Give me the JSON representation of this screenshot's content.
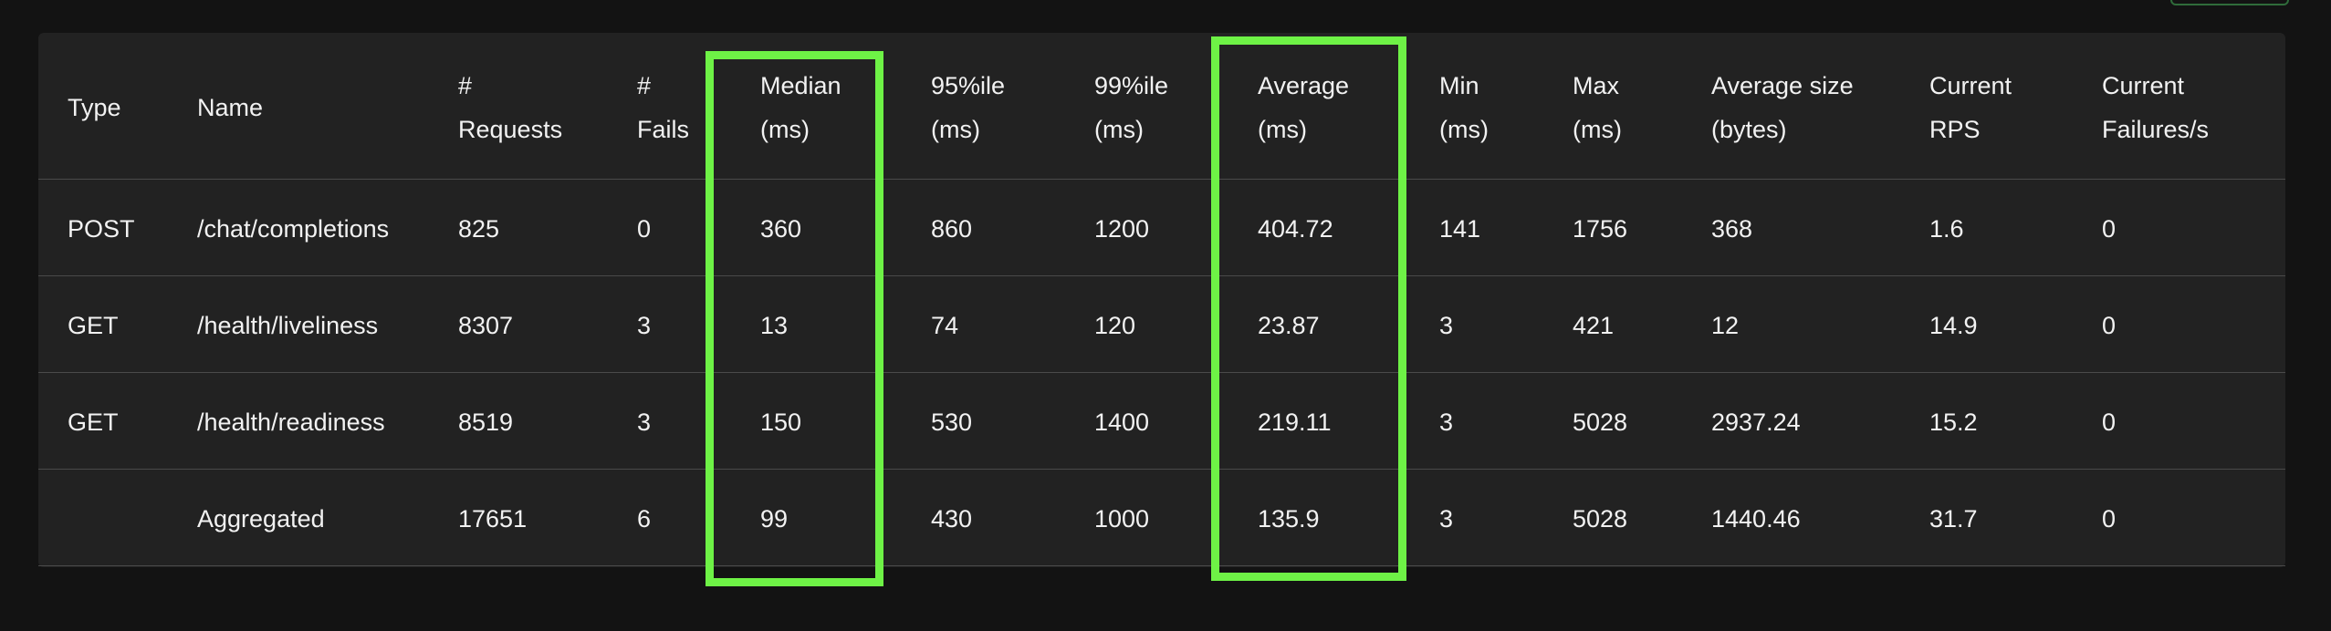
{
  "columns": [
    {
      "key": "type",
      "label": "Type"
    },
    {
      "key": "name",
      "label": "Name"
    },
    {
      "key": "requests",
      "label": "#\nRequests"
    },
    {
      "key": "fails",
      "label": "#\nFails"
    },
    {
      "key": "median",
      "label": "Median\n(ms)"
    },
    {
      "key": "p95",
      "label": "95%ile\n(ms)"
    },
    {
      "key": "p99",
      "label": "99%ile\n(ms)"
    },
    {
      "key": "average",
      "label": "Average\n(ms)"
    },
    {
      "key": "min",
      "label": "Min\n(ms)"
    },
    {
      "key": "max",
      "label": "Max\n(ms)"
    },
    {
      "key": "avg_size",
      "label": "Average size\n(bytes)"
    },
    {
      "key": "rps",
      "label": "Current\nRPS"
    },
    {
      "key": "failures_per_s",
      "label": "Current\nFailures/s"
    }
  ],
  "rows": [
    [
      "POST",
      "/chat/completions",
      "825",
      "0",
      "360",
      "860",
      "1200",
      "404.72",
      "141",
      "1756",
      "368",
      "1.6",
      "0"
    ],
    [
      "GET",
      "/health/liveliness",
      "8307",
      "3",
      "13",
      "74",
      "120",
      "23.87",
      "3",
      "421",
      "12",
      "14.9",
      "0"
    ],
    [
      "GET",
      "/health/readiness",
      "8519",
      "3",
      "150",
      "530",
      "1400",
      "219.11",
      "3",
      "5028",
      "2937.24",
      "15.2",
      "0"
    ],
    [
      "",
      "Aggregated",
      "17651",
      "6",
      "99",
      "430",
      "1000",
      "135.9",
      "3",
      "5028",
      "1440.46",
      "31.7",
      "0"
    ]
  ],
  "highlighted_columns": [
    "Median (ms)",
    "Average (ms)"
  ],
  "highlight_color": "#6ef246"
}
